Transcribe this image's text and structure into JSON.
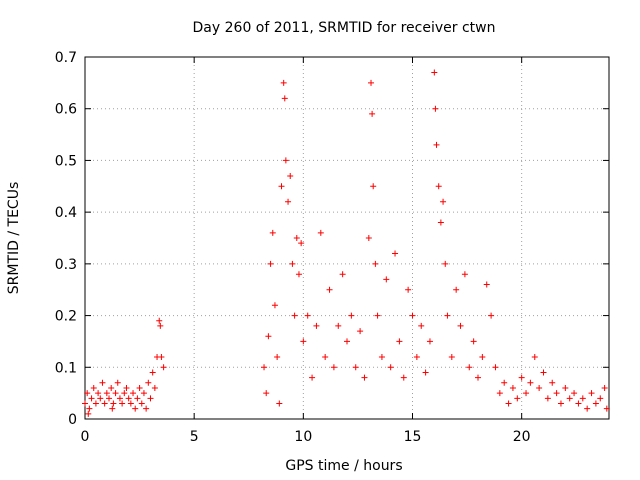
{
  "chart_data": {
    "type": "scatter",
    "title": "Day 260 of 2011, SRMTID for receiver ctwn",
    "xlabel": "GPS time / hours",
    "ylabel": "SRMTID / TECUs",
    "xlim": [
      0,
      24
    ],
    "ylim": [
      0,
      0.7
    ],
    "xticks": [
      "0",
      "5",
      "10",
      "15",
      "20"
    ],
    "yticks": [
      "0",
      "0.1",
      "0.2",
      "0.3",
      "0.4",
      "0.5",
      "0.6",
      "0.7"
    ],
    "grid": true,
    "marker": "+",
    "color": "#ff0000",
    "series": [
      {
        "points": [
          [
            0.0,
            0.03
          ],
          [
            0.1,
            0.05
          ],
          [
            0.2,
            0.02
          ],
          [
            0.3,
            0.04
          ],
          [
            0.4,
            0.06
          ],
          [
            0.5,
            0.03
          ],
          [
            0.6,
            0.05
          ],
          [
            0.7,
            0.04
          ],
          [
            0.8,
            0.07
          ],
          [
            0.9,
            0.03
          ],
          [
            1.0,
            0.05
          ],
          [
            1.1,
            0.04
          ],
          [
            1.2,
            0.06
          ],
          [
            1.3,
            0.03
          ],
          [
            1.4,
            0.05
          ],
          [
            1.5,
            0.07
          ],
          [
            1.6,
            0.04
          ],
          [
            1.7,
            0.03
          ],
          [
            1.8,
            0.05
          ],
          [
            1.9,
            0.06
          ],
          [
            2.0,
            0.04
          ],
          [
            2.1,
            0.03
          ],
          [
            2.2,
            0.05
          ],
          [
            2.3,
            0.02
          ],
          [
            2.4,
            0.04
          ],
          [
            2.5,
            0.06
          ],
          [
            2.6,
            0.03
          ],
          [
            2.7,
            0.05
          ],
          [
            2.8,
            0.02
          ],
          [
            2.9,
            0.07
          ],
          [
            3.0,
            0.04
          ],
          [
            3.1,
            0.09
          ],
          [
            3.2,
            0.06
          ],
          [
            3.3,
            0.12
          ],
          [
            3.4,
            0.19
          ],
          [
            3.45,
            0.18
          ],
          [
            3.5,
            0.12
          ],
          [
            3.6,
            0.1
          ],
          [
            0.15,
            0.01
          ],
          [
            1.25,
            0.02
          ],
          [
            8.2,
            0.1
          ],
          [
            8.3,
            0.05
          ],
          [
            8.4,
            0.16
          ],
          [
            8.5,
            0.3
          ],
          [
            8.6,
            0.36
          ],
          [
            8.7,
            0.22
          ],
          [
            8.8,
            0.12
          ],
          [
            8.9,
            0.03
          ],
          [
            9.0,
            0.45
          ],
          [
            9.1,
            0.65
          ],
          [
            9.15,
            0.62
          ],
          [
            9.2,
            0.5
          ],
          [
            9.3,
            0.42
          ],
          [
            9.4,
            0.47
          ],
          [
            9.5,
            0.3
          ],
          [
            9.6,
            0.2
          ],
          [
            9.7,
            0.35
          ],
          [
            9.8,
            0.28
          ],
          [
            9.9,
            0.34
          ],
          [
            10.0,
            0.15
          ],
          [
            10.2,
            0.2
          ],
          [
            10.4,
            0.08
          ],
          [
            10.6,
            0.18
          ],
          [
            10.8,
            0.36
          ],
          [
            11.0,
            0.12
          ],
          [
            11.2,
            0.25
          ],
          [
            11.4,
            0.1
          ],
          [
            11.6,
            0.18
          ],
          [
            11.8,
            0.28
          ],
          [
            12.0,
            0.15
          ],
          [
            12.2,
            0.2
          ],
          [
            12.4,
            0.1
          ],
          [
            12.6,
            0.17
          ],
          [
            12.8,
            0.08
          ],
          [
            13.0,
            0.35
          ],
          [
            13.1,
            0.65
          ],
          [
            13.15,
            0.59
          ],
          [
            13.2,
            0.45
          ],
          [
            13.3,
            0.3
          ],
          [
            13.4,
            0.2
          ],
          [
            13.6,
            0.12
          ],
          [
            13.8,
            0.27
          ],
          [
            14.0,
            0.1
          ],
          [
            14.2,
            0.32
          ],
          [
            14.4,
            0.15
          ],
          [
            14.6,
            0.08
          ],
          [
            14.8,
            0.25
          ],
          [
            15.0,
            0.2
          ],
          [
            15.2,
            0.12
          ],
          [
            15.4,
            0.18
          ],
          [
            15.6,
            0.09
          ],
          [
            15.8,
            0.15
          ],
          [
            16.0,
            0.67
          ],
          [
            16.05,
            0.6
          ],
          [
            16.1,
            0.53
          ],
          [
            16.2,
            0.45
          ],
          [
            16.3,
            0.38
          ],
          [
            16.4,
            0.42
          ],
          [
            16.5,
            0.3
          ],
          [
            16.6,
            0.2
          ],
          [
            16.8,
            0.12
          ],
          [
            17.0,
            0.25
          ],
          [
            17.2,
            0.18
          ],
          [
            17.4,
            0.28
          ],
          [
            17.6,
            0.1
          ],
          [
            17.8,
            0.15
          ],
          [
            18.0,
            0.08
          ],
          [
            18.2,
            0.12
          ],
          [
            18.4,
            0.26
          ],
          [
            18.6,
            0.2
          ],
          [
            18.8,
            0.1
          ],
          [
            19.0,
            0.05
          ],
          [
            19.2,
            0.07
          ],
          [
            19.4,
            0.03
          ],
          [
            19.6,
            0.06
          ],
          [
            19.8,
            0.04
          ],
          [
            20.0,
            0.08
          ],
          [
            20.2,
            0.05
          ],
          [
            20.4,
            0.07
          ],
          [
            20.6,
            0.12
          ],
          [
            20.8,
            0.06
          ],
          [
            21.0,
            0.09
          ],
          [
            21.2,
            0.04
          ],
          [
            21.4,
            0.07
          ],
          [
            21.6,
            0.05
          ],
          [
            21.8,
            0.03
          ],
          [
            22.0,
            0.06
          ],
          [
            22.2,
            0.04
          ],
          [
            22.4,
            0.05
          ],
          [
            22.6,
            0.03
          ],
          [
            22.8,
            0.04
          ],
          [
            23.0,
            0.02
          ],
          [
            23.2,
            0.05
          ],
          [
            23.4,
            0.03
          ],
          [
            23.6,
            0.04
          ],
          [
            23.8,
            0.06
          ],
          [
            23.9,
            0.02
          ]
        ]
      }
    ]
  }
}
